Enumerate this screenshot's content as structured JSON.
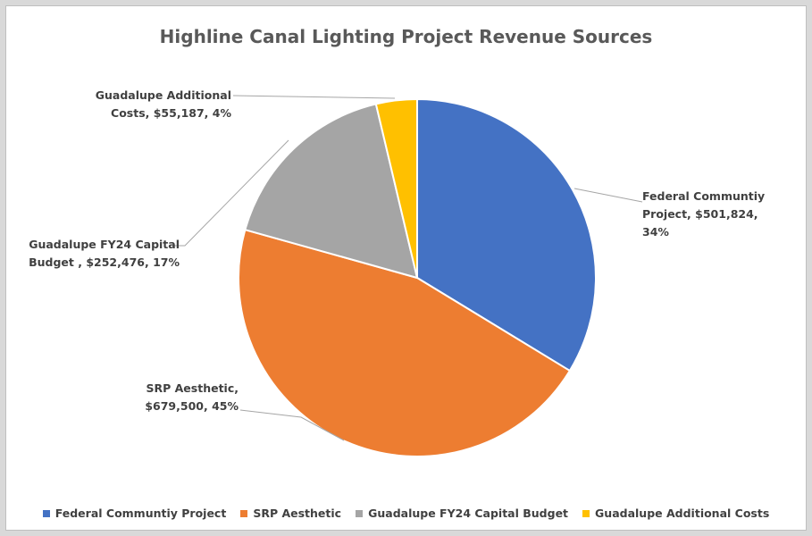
{
  "chart_data": {
    "type": "pie",
    "title": "Highline Canal Lighting Project Revenue Sources",
    "categories": [
      "Federal Communtiy Project",
      "SRP Aesthetic",
      "Guadalupe FY24 Capital Budget",
      "Guadalupe Additional Costs"
    ],
    "values": [
      501824,
      679500,
      252476,
      55187
    ],
    "data_labels": [
      "Federal Communtiy Project, $501,824, 34%",
      "SRP Aesthetic, $679,500, 45%",
      "Guadalupe FY24 Capital Budget , $252,476, 17%",
      "Guadalupe Additional Costs, $55,187, 4%"
    ],
    "colors": [
      "#4472c4",
      "#ed7d31",
      "#a5a5a5",
      "#ffc000"
    ],
    "legend": "bottom"
  }
}
